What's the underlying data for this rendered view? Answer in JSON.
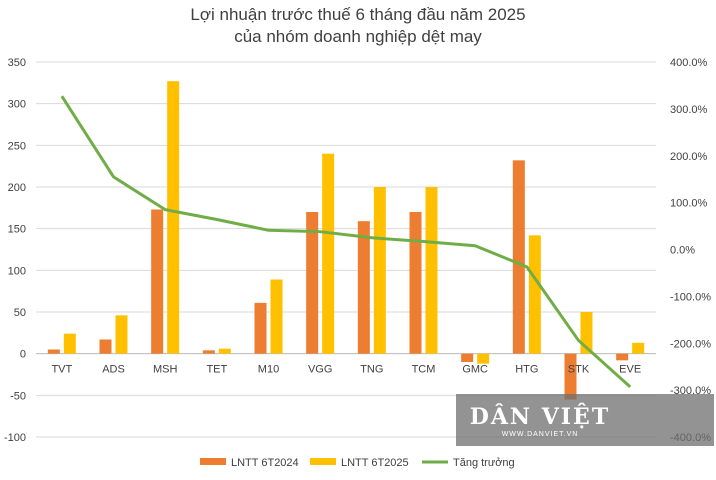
{
  "chart_data": {
    "type": "bar",
    "title": "Lợi nhuận trước thuế 6 tháng đầu năm 2025",
    "subtitle": "của nhóm doanh nghiệp dệt may",
    "categories": [
      "TVT",
      "ADS",
      "MSH",
      "TET",
      "M10",
      "VGG",
      "TNG",
      "TCM",
      "GMC",
      "HTG",
      "STK",
      "EVE"
    ],
    "series": [
      {
        "name": "LNTT 6T2024",
        "type": "bar",
        "axis": "left",
        "color": "#ED7D31",
        "values": [
          5,
          17,
          173,
          4,
          61,
          170,
          159,
          170,
          -10,
          232,
          -55,
          -8
        ]
      },
      {
        "name": "LNTT 6T2025",
        "type": "bar",
        "axis": "left",
        "color": "#FFC000",
        "values": [
          24,
          46,
          327,
          6,
          89,
          240,
          200,
          200,
          -12,
          142,
          50,
          13
        ]
      },
      {
        "name": "Tăng trưởng",
        "type": "line",
        "axis": "right",
        "color": "#70AD47",
        "values": [
          327,
          155,
          85,
          64,
          41,
          38,
          25,
          17,
          8,
          -37,
          -194,
          -293
        ]
      }
    ],
    "ylim_left": [
      -100,
      350
    ],
    "yticks_left": [
      "350",
      "300",
      "250",
      "200",
      "150",
      "100",
      "50",
      "0",
      "-50",
      "-100"
    ],
    "ylim_right": [
      -400,
      400
    ],
    "yticks_right": [
      "400.0%",
      "300.0%",
      "200.0%",
      "100.0%",
      "0.0%",
      "-100.0%",
      "-200.0%",
      "-300.0%",
      "-400.0%"
    ],
    "grid": true,
    "legend": "bottom"
  },
  "watermark": {
    "main": "DÂN VIỆT",
    "sub": "WWW.DANVIET.VN"
  }
}
